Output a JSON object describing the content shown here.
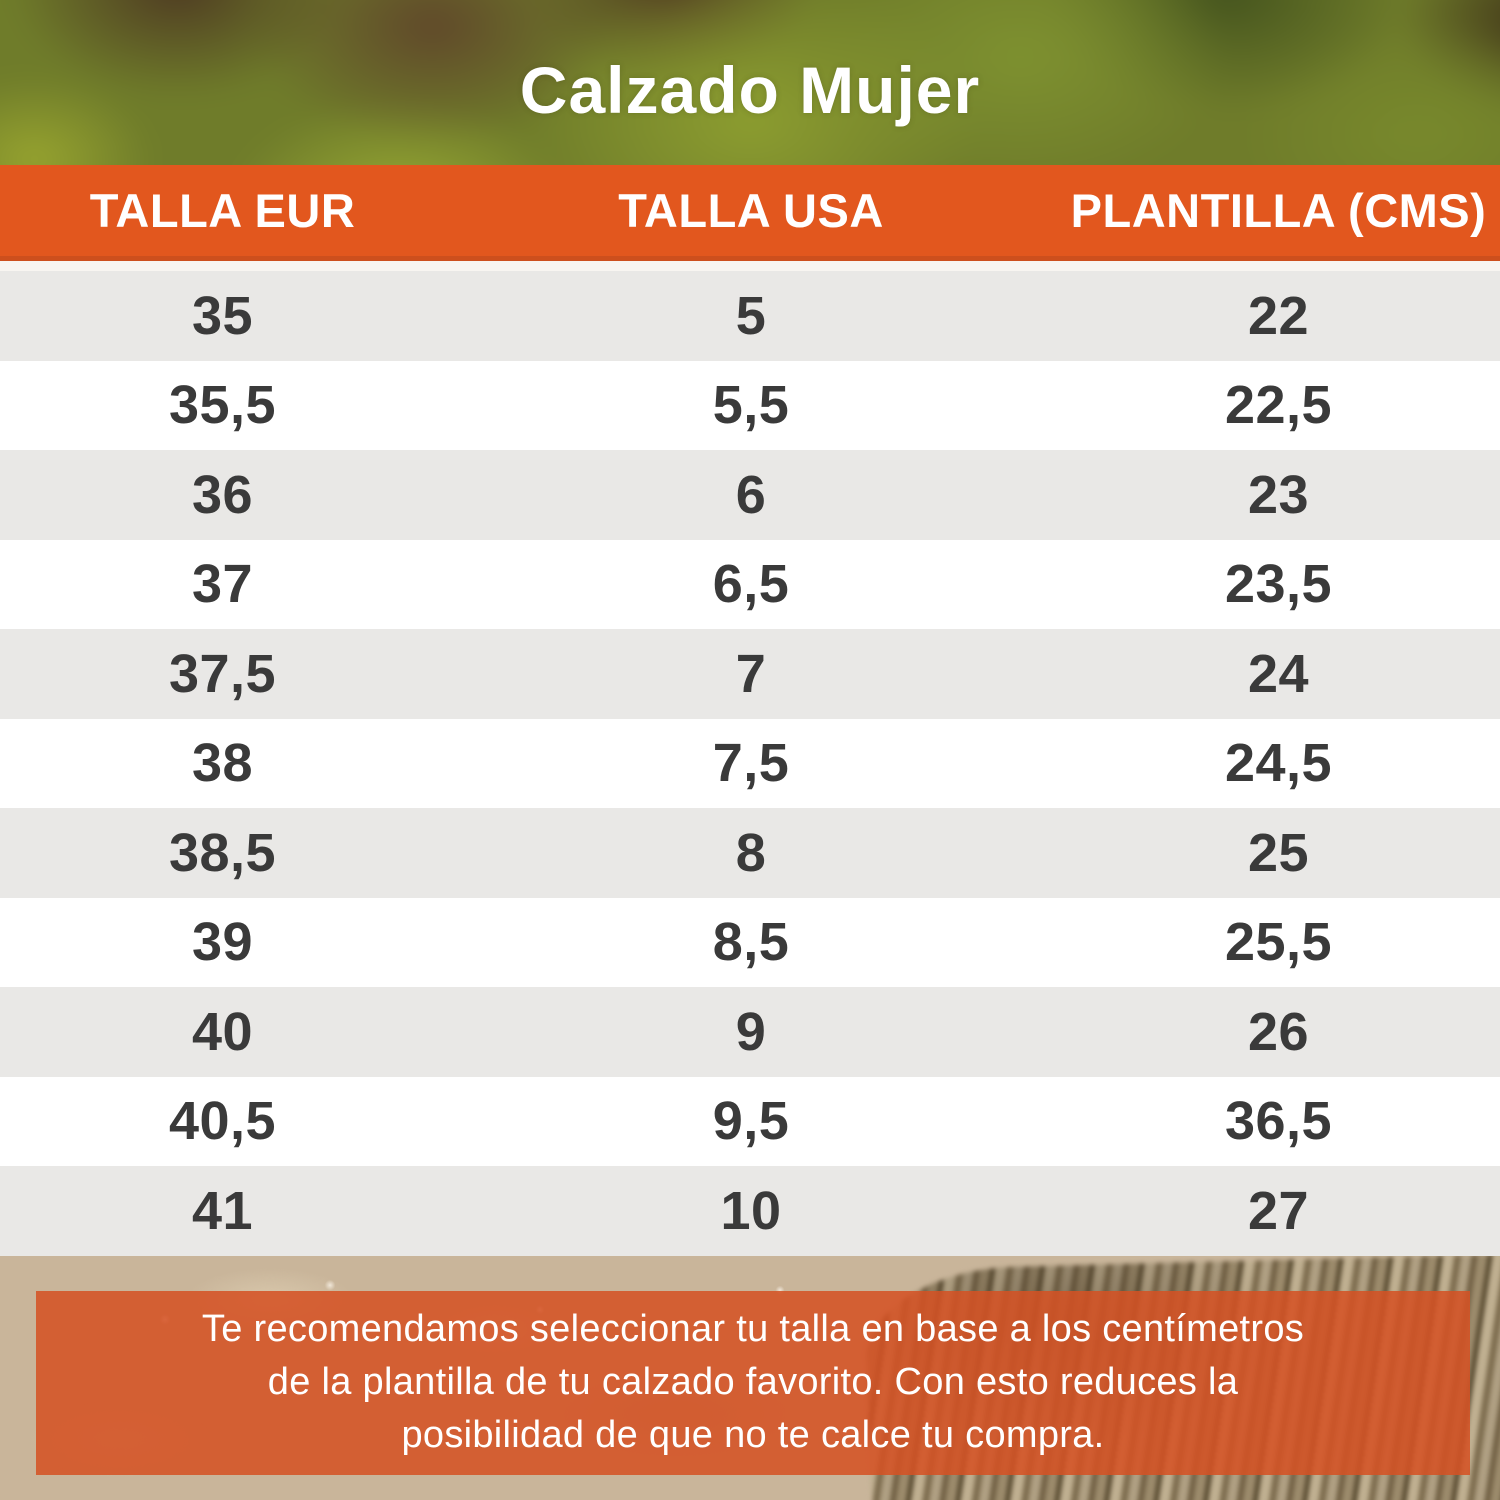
{
  "title": "Calzado Mujer",
  "colors": {
    "accent": "#e2571e",
    "accent_dark": "#cd4f1d",
    "header_text": "#ffffff",
    "separator": "#f8f5f1",
    "row_gray": "#e9e8e6",
    "row_white": "#ffffff",
    "cell_text": "#3a3a3a",
    "sand": "#c9b59a",
    "note_bg": "rgba(213,82,36,0.87)",
    "note_text": "#ffffff"
  },
  "chart_data": {
    "type": "table",
    "title": "Calzado Mujer",
    "columns": [
      "TALLA EUR",
      "TALLA USA",
      "PLANTILLA (CMS)"
    ],
    "rows": [
      [
        "35",
        "5",
        "22"
      ],
      [
        "35,5",
        "5,5",
        "22,5"
      ],
      [
        "36",
        "6",
        "23"
      ],
      [
        "37",
        "6,5",
        "23,5"
      ],
      [
        "37,5",
        "7",
        "24"
      ],
      [
        "38",
        "7,5",
        "24,5"
      ],
      [
        "38,5",
        "8",
        "25"
      ],
      [
        "39",
        "8,5",
        "25,5"
      ],
      [
        "40",
        "9",
        "26"
      ],
      [
        "40,5",
        "9,5",
        "36,5"
      ],
      [
        "41",
        "10",
        "27"
      ]
    ]
  },
  "note": {
    "lines": [
      "Te recomendamos seleccionar tu talla en base a los centímetros",
      "de la plantilla de tu calzado favorito. Con esto reduces la",
      "posibilidad de que no te calce tu compra."
    ]
  }
}
